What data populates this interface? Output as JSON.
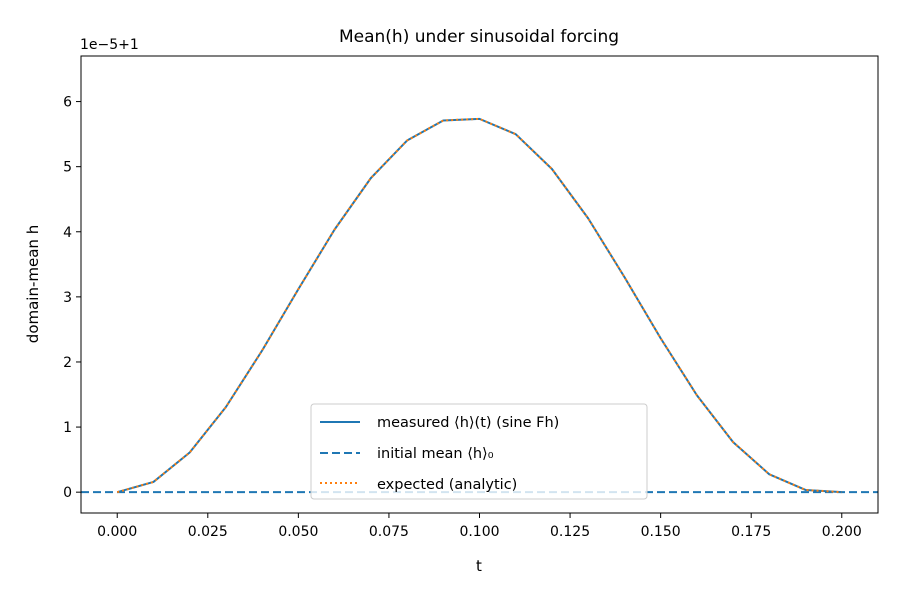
{
  "chart_data": {
    "type": "line",
    "title": "Mean(h) under sinusoidal forcing",
    "xlabel": "t",
    "ylabel": "domain-mean h",
    "offset_label": "1e−5+1",
    "xlim": [
      -0.01,
      0.21
    ],
    "ylim": [
      -0.32,
      6.7
    ],
    "xticks": [
      0.0,
      0.025,
      0.05,
      0.075,
      0.1,
      0.125,
      0.15,
      0.175,
      0.2
    ],
    "xtick_labels": [
      "0.000",
      "0.025",
      "0.050",
      "0.075",
      "0.100",
      "0.125",
      "0.150",
      "0.175",
      "0.200"
    ],
    "yticks": [
      0,
      1,
      2,
      3,
      4,
      5,
      6
    ],
    "ytick_labels": [
      "0",
      "1",
      "2",
      "3",
      "4",
      "5",
      "6"
    ],
    "grid": false,
    "legend_position": "lower-center",
    "series": [
      {
        "name": "measured ⟨h⟩(t) (sine Fh)",
        "style": "solid",
        "color": "#1f77b4",
        "x": [
          0.0,
          0.01,
          0.02,
          0.03,
          0.04,
          0.05,
          0.06,
          0.07,
          0.08,
          0.09,
          0.1,
          0.11,
          0.12,
          0.13,
          0.14,
          0.15,
          0.16,
          0.17,
          0.18,
          0.19,
          0.2
        ],
        "y": [
          0.0,
          0.157,
          0.609,
          1.308,
          2.176,
          3.119,
          4.035,
          4.824,
          5.401,
          5.71,
          5.734,
          5.499,
          4.964,
          4.206,
          3.305,
          2.364,
          1.489,
          0.769,
          0.274,
          0.034,
          0.0
        ]
      },
      {
        "name": "initial mean ⟨h⟩₀",
        "style": "dashed",
        "color": "#1f77b4",
        "x": [
          -0.01,
          0.21
        ],
        "y": [
          0,
          0
        ]
      },
      {
        "name": "expected (analytic)",
        "style": "dotted",
        "color": "#ff7f0e",
        "x": [
          0.0,
          0.01,
          0.02,
          0.03,
          0.04,
          0.05,
          0.06,
          0.07,
          0.08,
          0.09,
          0.1,
          0.11,
          0.12,
          0.13,
          0.14,
          0.15,
          0.16,
          0.17,
          0.18,
          0.19,
          0.2
        ],
        "y": [
          0.0,
          0.157,
          0.609,
          1.308,
          2.176,
          3.119,
          4.035,
          4.824,
          5.401,
          5.71,
          5.734,
          5.499,
          4.964,
          4.206,
          3.305,
          2.364,
          1.489,
          0.769,
          0.274,
          0.034,
          0.0
        ]
      }
    ]
  }
}
